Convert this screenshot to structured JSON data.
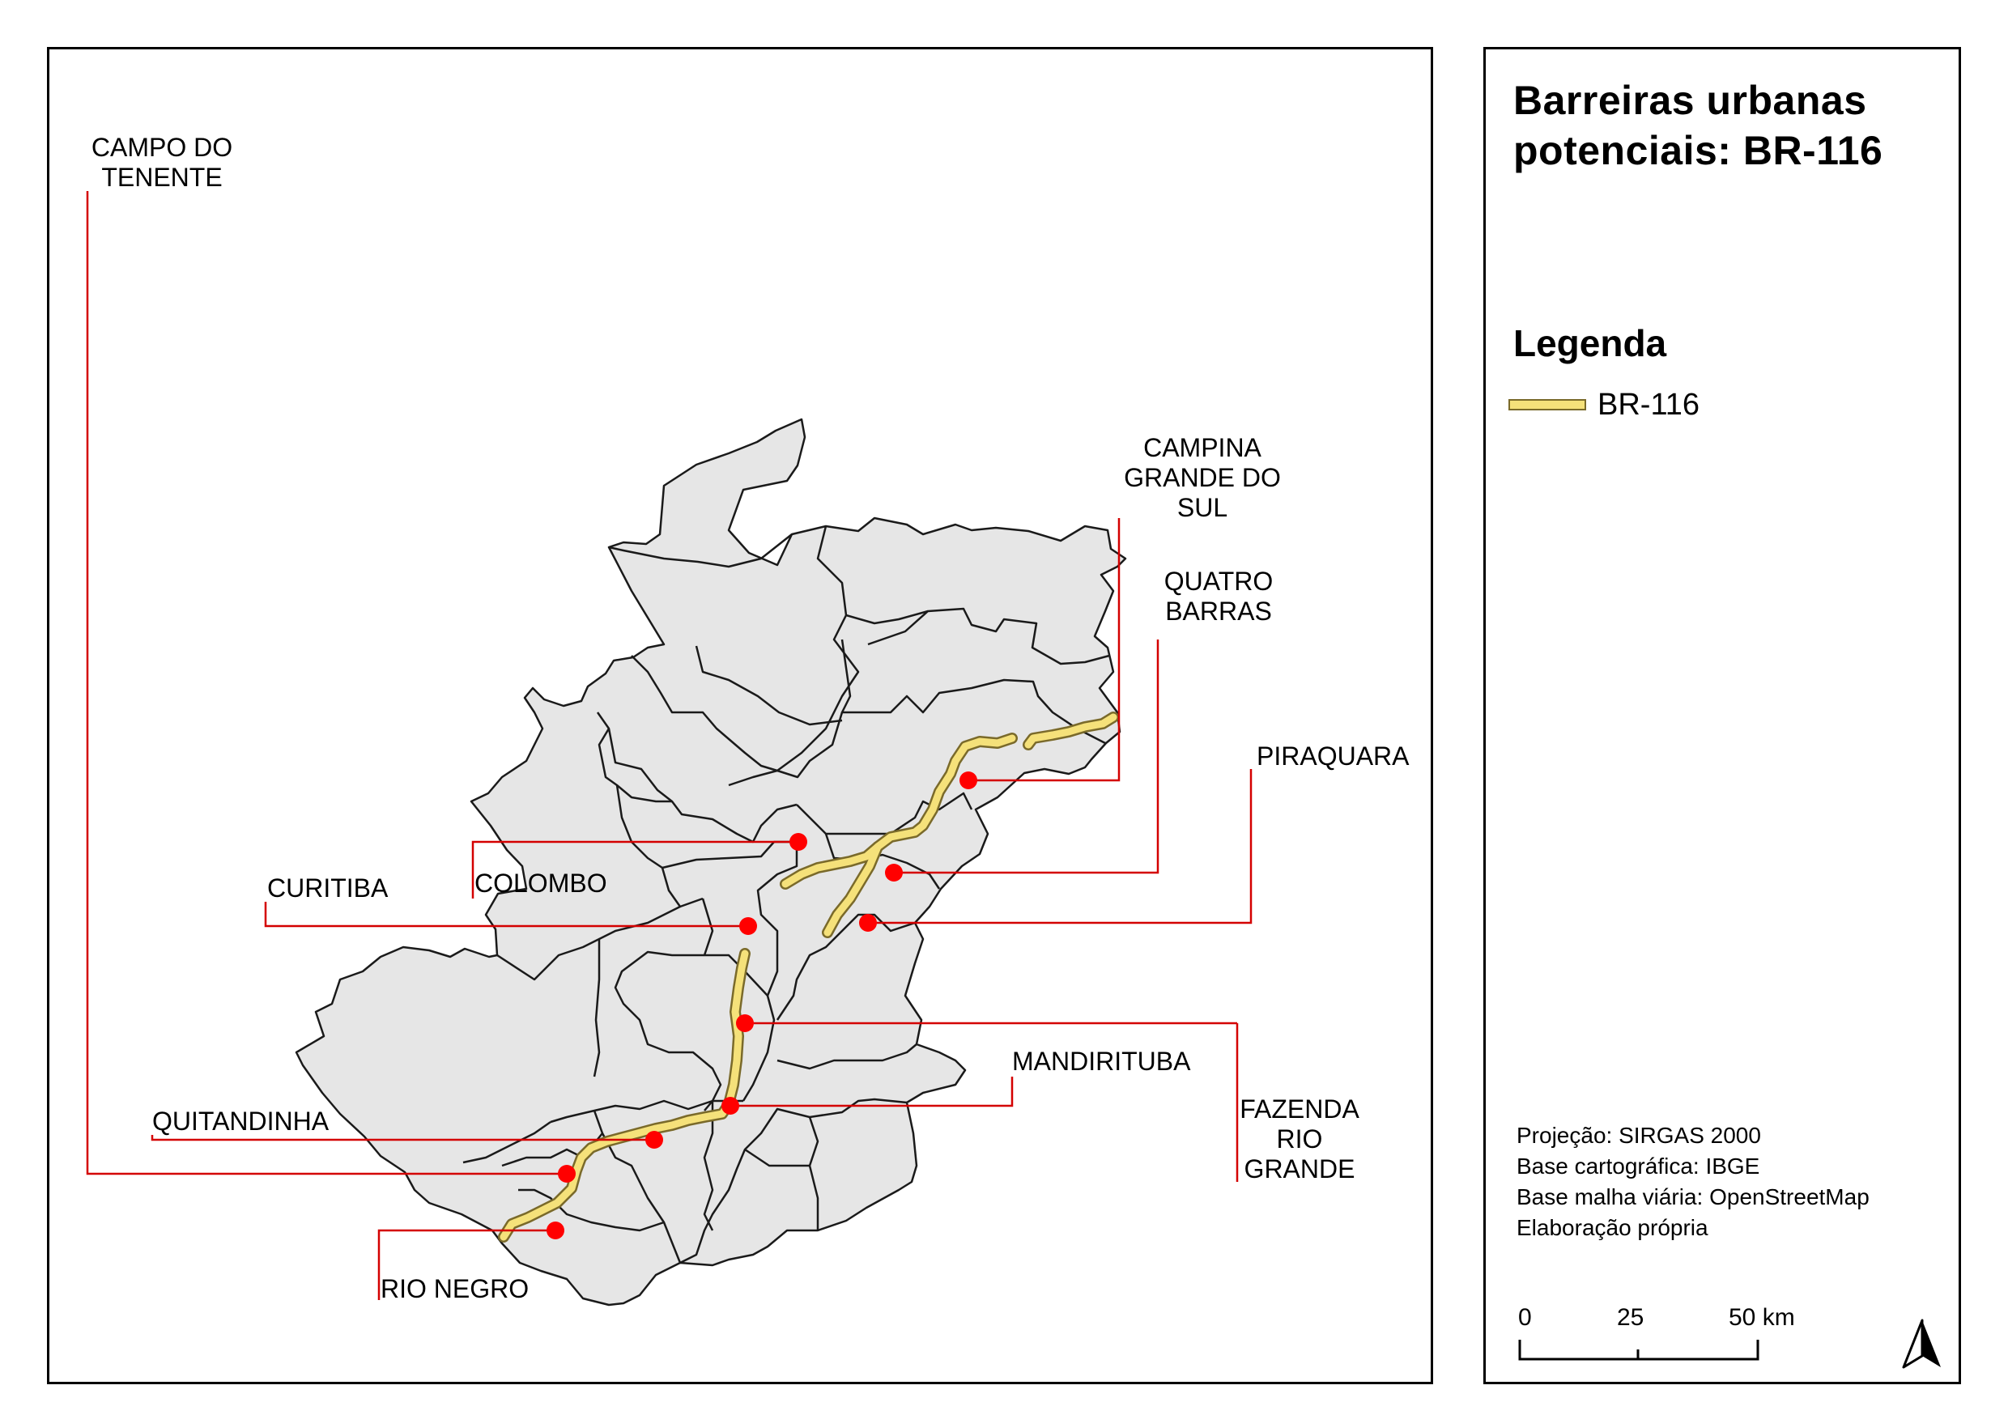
{
  "title": {
    "line1": "Barreiras urbanas",
    "line2": "potenciais: BR-116"
  },
  "legend": {
    "heading": "Legenda",
    "items": [
      {
        "label": "BR-116",
        "color": "#f5e17a",
        "outline": "#7a6a2a"
      }
    ]
  },
  "credits": {
    "projection": "Projeção: SIRGAS 2000",
    "base_cartographic": "Base cartográfica: IBGE",
    "base_roads": "Base malha viária: OpenStreetMap",
    "authorship": "Elaboração própria"
  },
  "scale_bar": {
    "ticks": [
      "0",
      "25",
      "50 km"
    ]
  },
  "north_arrow": {
    "icon": "north-arrow-icon"
  },
  "colors": {
    "municipality_fill": "#e6e6e6",
    "municipality_border": "#1a1a1a",
    "highway": "#f5e17a",
    "highway_outline": "#7a6a2a",
    "urban_point": "#ff0000",
    "leader_line": "#d40000"
  },
  "places": [
    {
      "id": "campo-do-tenente",
      "lines": [
        "CAMPO DO",
        "TENENTE"
      ]
    },
    {
      "id": "campina-grande-do-sul",
      "lines": [
        "CAMPINA",
        "GRANDE DO",
        "SUL"
      ]
    },
    {
      "id": "quatro-barras",
      "lines": [
        "QUATRO",
        "BARRAS"
      ]
    },
    {
      "id": "piraquara",
      "lines": [
        "PIRAQUARA"
      ]
    },
    {
      "id": "curitiba",
      "lines": [
        "CURITIBA"
      ]
    },
    {
      "id": "colombo",
      "lines": [
        "COLOMBO"
      ]
    },
    {
      "id": "mandirituba",
      "lines": [
        "MANDIRITUBA"
      ]
    },
    {
      "id": "fazenda-rio-grande",
      "lines": [
        "FAZENDA",
        "RIO",
        "GRANDE"
      ]
    },
    {
      "id": "quitandinha",
      "lines": [
        "QUITANDINHA"
      ]
    },
    {
      "id": "rio-negro",
      "lines": [
        "RIO NEGRO"
      ]
    }
  ]
}
